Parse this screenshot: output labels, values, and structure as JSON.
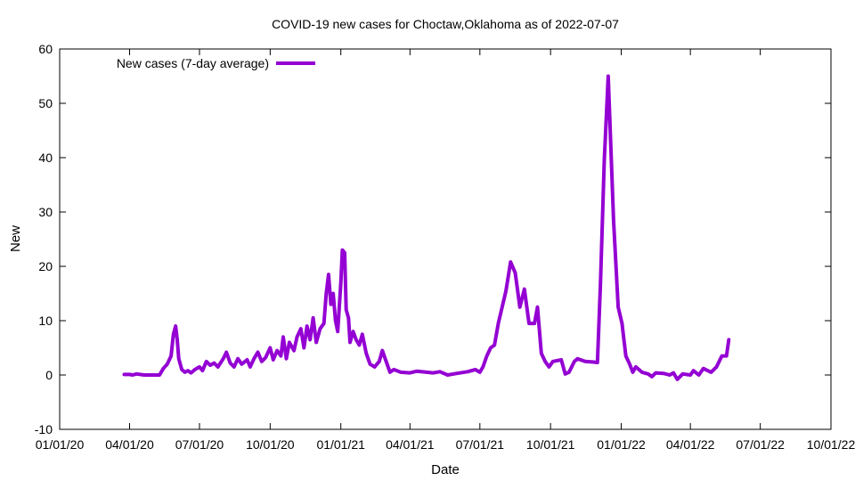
{
  "chart_data": {
    "type": "line",
    "title": "COVID-19 new cases for Choctaw,Oklahoma as of 2022-07-07",
    "xlabel": "Date",
    "ylabel": "New",
    "xlim": [
      "2020-01-01",
      "2022-10-01"
    ],
    "ylim": [
      -10,
      60
    ],
    "x_ticks": [
      "01/01/20",
      "04/01/20",
      "07/01/20",
      "10/01/20",
      "01/01/21",
      "04/01/21",
      "07/01/21",
      "10/01/21",
      "01/01/22",
      "04/01/22",
      "07/01/22",
      "10/01/22"
    ],
    "y_ticks": [
      "-10",
      "0",
      "10",
      "20",
      "30",
      "40",
      "50",
      "60"
    ],
    "grid": false,
    "legend_position": "top-left",
    "series": [
      {
        "name": "New cases (7-day average)",
        "color": "#9400d3",
        "points": [
          [
            "2020-03-25",
            0.1
          ],
          [
            "2020-04-01",
            0.1
          ],
          [
            "2020-04-05",
            0.0
          ],
          [
            "2020-04-10",
            0.2
          ],
          [
            "2020-04-20",
            0.0
          ],
          [
            "2020-05-05",
            0.0
          ],
          [
            "2020-05-10",
            0.0
          ],
          [
            "2020-05-15",
            1.2
          ],
          [
            "2020-05-20",
            2.0
          ],
          [
            "2020-05-25",
            3.5
          ],
          [
            "2020-05-28",
            7.5
          ],
          [
            "2020-05-31",
            9.0
          ],
          [
            "2020-06-02",
            6.5
          ],
          [
            "2020-06-04",
            3.0
          ],
          [
            "2020-06-08",
            1.0
          ],
          [
            "2020-06-12",
            0.5
          ],
          [
            "2020-06-16",
            0.8
          ],
          [
            "2020-06-20",
            0.4
          ],
          [
            "2020-06-25",
            1.0
          ],
          [
            "2020-07-01",
            1.5
          ],
          [
            "2020-07-05",
            0.8
          ],
          [
            "2020-07-10",
            2.5
          ],
          [
            "2020-07-15",
            1.8
          ],
          [
            "2020-07-20",
            2.2
          ],
          [
            "2020-07-25",
            1.5
          ],
          [
            "2020-08-01",
            3.0
          ],
          [
            "2020-08-05",
            4.2
          ],
          [
            "2020-08-10",
            2.2
          ],
          [
            "2020-08-15",
            1.5
          ],
          [
            "2020-08-20",
            3.0
          ],
          [
            "2020-08-25",
            2.0
          ],
          [
            "2020-09-01",
            2.8
          ],
          [
            "2020-09-05",
            1.5
          ],
          [
            "2020-09-10",
            3.0
          ],
          [
            "2020-09-15",
            4.2
          ],
          [
            "2020-09-20",
            2.5
          ],
          [
            "2020-09-25",
            3.2
          ],
          [
            "2020-10-01",
            5.0
          ],
          [
            "2020-10-05",
            2.8
          ],
          [
            "2020-10-10",
            4.5
          ],
          [
            "2020-10-15",
            3.5
          ],
          [
            "2020-10-18",
            7.0
          ],
          [
            "2020-10-22",
            3.0
          ],
          [
            "2020-10-26",
            6.0
          ],
          [
            "2020-11-01",
            4.5
          ],
          [
            "2020-11-05",
            7.0
          ],
          [
            "2020-11-10",
            8.5
          ],
          [
            "2020-11-14",
            5.0
          ],
          [
            "2020-11-18",
            9.0
          ],
          [
            "2020-11-22",
            6.5
          ],
          [
            "2020-11-26",
            10.5
          ],
          [
            "2020-11-30",
            6.0
          ],
          [
            "2020-12-05",
            8.5
          ],
          [
            "2020-12-10",
            9.5
          ],
          [
            "2020-12-13",
            15.0
          ],
          [
            "2020-12-16",
            18.5
          ],
          [
            "2020-12-19",
            13.0
          ],
          [
            "2020-12-22",
            15.0
          ],
          [
            "2020-12-25",
            10.0
          ],
          [
            "2020-12-28",
            8.0
          ],
          [
            "2021-01-01",
            17.0
          ],
          [
            "2021-01-03",
            23.0
          ],
          [
            "2021-01-06",
            22.5
          ],
          [
            "2021-01-08",
            12.0
          ],
          [
            "2021-01-11",
            10.5
          ],
          [
            "2021-01-13",
            6.0
          ],
          [
            "2021-01-17",
            8.0
          ],
          [
            "2021-01-21",
            6.5
          ],
          [
            "2021-01-25",
            5.5
          ],
          [
            "2021-01-29",
            7.5
          ],
          [
            "2021-02-03",
            4.0
          ],
          [
            "2021-02-08",
            2.0
          ],
          [
            "2021-02-14",
            1.5
          ],
          [
            "2021-02-20",
            2.5
          ],
          [
            "2021-02-24",
            4.5
          ],
          [
            "2021-03-01",
            2.5
          ],
          [
            "2021-03-06",
            0.5
          ],
          [
            "2021-03-11",
            1.0
          ],
          [
            "2021-03-20",
            0.5
          ],
          [
            "2021-04-01",
            0.4
          ],
          [
            "2021-04-10",
            0.7
          ],
          [
            "2021-05-01",
            0.4
          ],
          [
            "2021-05-10",
            0.6
          ],
          [
            "2021-05-20",
            0.0
          ],
          [
            "2021-06-01",
            0.3
          ],
          [
            "2021-06-15",
            0.6
          ],
          [
            "2021-06-25",
            1.0
          ],
          [
            "2021-07-01",
            0.5
          ],
          [
            "2021-07-05",
            1.5
          ],
          [
            "2021-07-10",
            3.5
          ],
          [
            "2021-07-15",
            5.0
          ],
          [
            "2021-07-20",
            5.5
          ],
          [
            "2021-07-25",
            9.5
          ],
          [
            "2021-07-30",
            12.5
          ],
          [
            "2021-08-04",
            15.5
          ],
          [
            "2021-08-10",
            20.8
          ],
          [
            "2021-08-16",
            18.8
          ],
          [
            "2021-08-22",
            12.5
          ],
          [
            "2021-08-28",
            15.8
          ],
          [
            "2021-09-03",
            9.5
          ],
          [
            "2021-09-10",
            9.5
          ],
          [
            "2021-09-14",
            12.5
          ],
          [
            "2021-09-19",
            4.0
          ],
          [
            "2021-09-24",
            2.5
          ],
          [
            "2021-09-29",
            1.5
          ],
          [
            "2021-10-04",
            2.5
          ],
          [
            "2021-10-15",
            2.8
          ],
          [
            "2021-10-20",
            0.2
          ],
          [
            "2021-10-25",
            0.5
          ],
          [
            "2021-11-01",
            2.5
          ],
          [
            "2021-11-05",
            3.0
          ],
          [
            "2021-11-15",
            2.5
          ],
          [
            "2021-11-25",
            2.4
          ],
          [
            "2021-12-01",
            2.3
          ],
          [
            "2021-12-05",
            16.8
          ],
          [
            "2021-12-10",
            39.5
          ],
          [
            "2021-12-15",
            55.0
          ],
          [
            "2021-12-22",
            28.5
          ],
          [
            "2021-12-28",
            12.5
          ],
          [
            "2022-01-02",
            9.5
          ],
          [
            "2022-01-07",
            3.5
          ],
          [
            "2022-01-12",
            2.0
          ],
          [
            "2022-01-16",
            0.5
          ],
          [
            "2022-01-20",
            1.5
          ],
          [
            "2022-01-28",
            0.5
          ],
          [
            "2022-02-05",
            0.2
          ],
          [
            "2022-02-10",
            -0.3
          ],
          [
            "2022-02-15",
            0.4
          ],
          [
            "2022-02-25",
            0.3
          ],
          [
            "2022-03-05",
            0.0
          ],
          [
            "2022-03-10",
            0.4
          ],
          [
            "2022-03-15",
            -0.8
          ],
          [
            "2022-03-22",
            0.2
          ],
          [
            "2022-04-01",
            0.0
          ],
          [
            "2022-04-05",
            0.8
          ],
          [
            "2022-04-12",
            0.0
          ],
          [
            "2022-04-18",
            1.2
          ],
          [
            "2022-04-28",
            0.5
          ],
          [
            "2022-05-05",
            1.5
          ],
          [
            "2022-05-12",
            3.5
          ],
          [
            "2022-05-18",
            3.5
          ],
          [
            "2022-05-21",
            6.5
          ]
        ]
      }
    ]
  }
}
